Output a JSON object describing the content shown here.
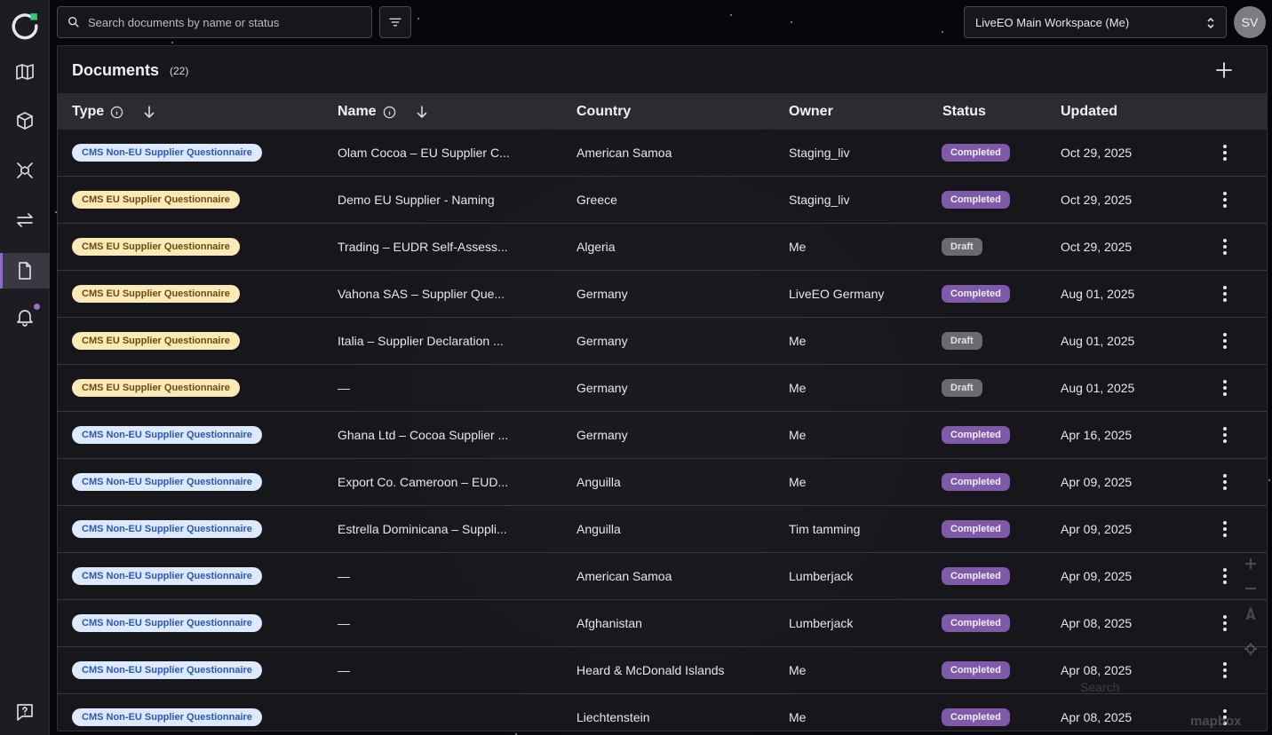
{
  "nav": {
    "items": [
      {
        "name": "map-icon"
      },
      {
        "name": "package-icon"
      },
      {
        "name": "network-icon"
      },
      {
        "name": "transfer-icon"
      },
      {
        "name": "document-icon",
        "active": true
      },
      {
        "name": "bell-icon",
        "badge": true
      }
    ],
    "help_icon": "help-chat-icon"
  },
  "search": {
    "placeholder": "Search documents by name or status",
    "value": ""
  },
  "workspace": {
    "selected": "LiveEO Main Workspace (Me)"
  },
  "user": {
    "initials": "SV"
  },
  "panel": {
    "title": "Documents",
    "count": "(22)"
  },
  "table": {
    "headers": {
      "type": "Type",
      "name": "Name",
      "country": "Country",
      "owner": "Owner",
      "status": "Status",
      "updated": "Updated"
    },
    "rows": [
      {
        "type": "CMS Non-EU Supplier Questionnaire",
        "type_kind": "noneu",
        "name": "Olam Cocoa – EU Supplier C...",
        "country": "American Samoa",
        "owner": "Staging_liv",
        "status": "Completed",
        "updated": "Oct 29, 2025"
      },
      {
        "type": "CMS EU Supplier Questionnaire",
        "type_kind": "eu",
        "name": "Demo EU Supplier - Naming",
        "country": "Greece",
        "owner": "Staging_liv",
        "status": "Completed",
        "updated": "Oct 29, 2025"
      },
      {
        "type": "CMS EU Supplier Questionnaire",
        "type_kind": "eu",
        "name": "Trading – EUDR Self-Assess...",
        "country": "Algeria",
        "owner": "Me",
        "status": "Draft",
        "updated": "Oct 29, 2025"
      },
      {
        "type": "CMS EU Supplier Questionnaire",
        "type_kind": "eu",
        "name": "Vahona SAS – Supplier Que...",
        "country": "Germany",
        "owner": "LiveEO Germany",
        "status": "Completed",
        "updated": "Aug 01, 2025"
      },
      {
        "type": "CMS EU Supplier Questionnaire",
        "type_kind": "eu",
        "name": "Italia – Supplier Declaration ...",
        "country": "Germany",
        "owner": "Me",
        "status": "Draft",
        "updated": "Aug 01, 2025"
      },
      {
        "type": "CMS EU Supplier Questionnaire",
        "type_kind": "eu",
        "name": "—",
        "country": "Germany",
        "owner": "Me",
        "status": "Draft",
        "updated": "Aug 01, 2025"
      },
      {
        "type": "CMS Non-EU Supplier Questionnaire",
        "type_kind": "noneu",
        "name": "Ghana Ltd – Cocoa Supplier ...",
        "country": "Germany",
        "owner": "Me",
        "status": "Completed",
        "updated": "Apr 16, 2025"
      },
      {
        "type": "CMS Non-EU Supplier Questionnaire",
        "type_kind": "noneu",
        "name": "Export Co. Cameroon – EUD...",
        "country": "Anguilla",
        "owner": "Me",
        "status": "Completed",
        "updated": "Apr 09, 2025"
      },
      {
        "type": "CMS Non-EU Supplier Questionnaire",
        "type_kind": "noneu",
        "name": "Estrella Dominicana – Suppli...",
        "country": "Anguilla",
        "owner": "Tim tamming",
        "status": "Completed",
        "updated": "Apr 09, 2025"
      },
      {
        "type": "CMS Non-EU Supplier Questionnaire",
        "type_kind": "noneu",
        "name": "—",
        "country": "American Samoa",
        "owner": "Lumberjack",
        "status": "Completed",
        "updated": "Apr 09, 2025"
      },
      {
        "type": "CMS Non-EU Supplier Questionnaire",
        "type_kind": "noneu",
        "name": "—",
        "country": "Afghanistan",
        "owner": "Lumberjack",
        "status": "Completed",
        "updated": "Apr 08, 2025"
      },
      {
        "type": "CMS Non-EU Supplier Questionnaire",
        "type_kind": "noneu",
        "name": "—",
        "country": "Heard & McDonald Islands",
        "owner": "Me",
        "status": "Completed",
        "updated": "Apr 08, 2025"
      },
      {
        "type": "CMS Non-EU Supplier Questionnaire",
        "type_kind": "noneu",
        "name": "",
        "country": "Liechtenstein",
        "owner": "Me",
        "status": "Completed",
        "updated": "Apr 08, 2025"
      }
    ]
  },
  "map": {
    "search_placeholder": "Search",
    "attribution": "mapbox"
  },
  "colors": {
    "accent": "#8f6cc4",
    "completed": "#7e5aa8",
    "draft": "#6b6a70",
    "noneu_badge": "#dce9ff",
    "eu_badge": "#fbeab8"
  }
}
